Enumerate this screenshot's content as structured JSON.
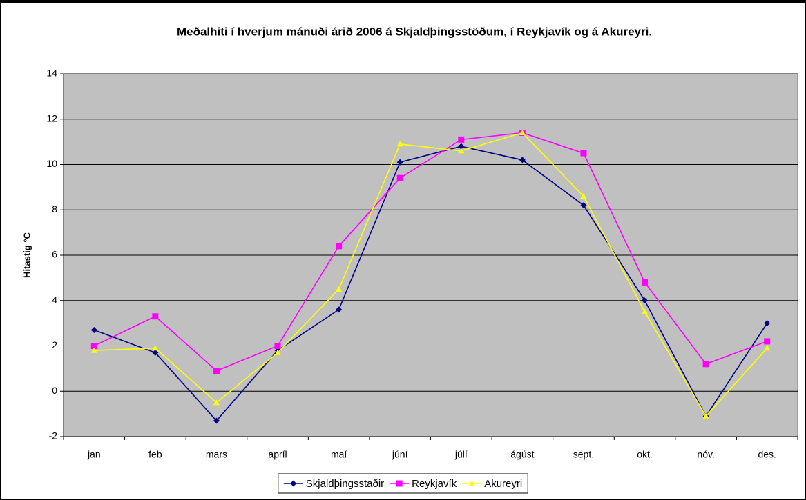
{
  "chart_data": {
    "type": "line",
    "title": "Meðalhiti í hverjum mánuði árið 2006 á Skjaldþingsstöðum, í Reykjavík og á Akureyri.",
    "y_label": "Hitastig °C",
    "categories": [
      "jan",
      "feb",
      "mars",
      "apríl",
      "maí",
      "júní",
      "júlí",
      "ágúst",
      "sept.",
      "okt.",
      "nóv.",
      "des."
    ],
    "series": [
      {
        "name": "Skjaldþingsstaðir",
        "color": "#000080",
        "marker": "diamond",
        "values": [
          2.7,
          1.7,
          -1.3,
          1.8,
          3.6,
          10.1,
          10.8,
          10.2,
          8.2,
          4.0,
          -1.1,
          3.0
        ]
      },
      {
        "name": "Reykjavík",
        "color": "#ff00ff",
        "marker": "square",
        "values": [
          2.0,
          3.3,
          0.9,
          2.0,
          6.4,
          9.4,
          11.1,
          11.4,
          10.5,
          4.8,
          1.2,
          2.2
        ]
      },
      {
        "name": "Akureyri",
        "color": "#ffff00",
        "marker": "triangle",
        "values": [
          1.8,
          1.9,
          -0.5,
          1.7,
          4.5,
          10.9,
          10.6,
          11.4,
          8.6,
          3.5,
          -1.1,
          1.9
        ]
      }
    ],
    "ylim": [
      -2,
      14
    ],
    "yticks": [
      -2,
      0,
      2,
      4,
      6,
      8,
      10,
      12,
      14
    ],
    "grid": true,
    "plot_background": "#c0c0c0",
    "legend": "bottom"
  }
}
